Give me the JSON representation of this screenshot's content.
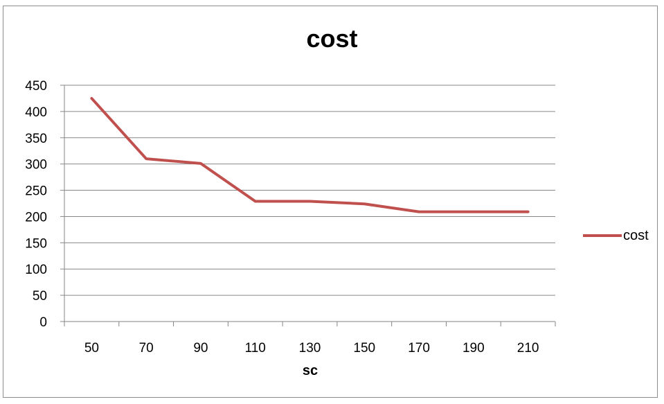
{
  "chart_data": {
    "type": "line",
    "title": "cost",
    "xlabel": "sc",
    "ylabel": "",
    "categories": [
      "50",
      "70",
      "90",
      "110",
      "130",
      "150",
      "170",
      "190",
      "210"
    ],
    "series": [
      {
        "name": "cost",
        "values": [
          425,
          310,
          301,
          229,
          229,
          224,
          209,
          209,
          209
        ],
        "color": "#c0504d"
      }
    ],
    "ylim": [
      0,
      450
    ],
    "yticks": [
      0,
      50,
      100,
      150,
      200,
      250,
      300,
      350,
      400,
      450
    ],
    "grid": true,
    "legend": "right"
  }
}
